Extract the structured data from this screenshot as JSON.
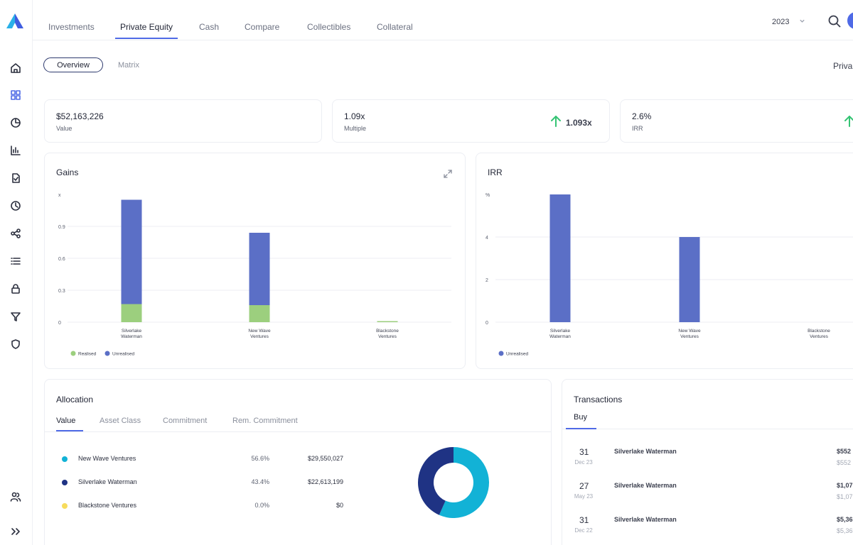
{
  "nav": {
    "tabs": [
      {
        "label": "Investments"
      },
      {
        "label": "Private Equity"
      },
      {
        "label": "Cash"
      },
      {
        "label": "Compare"
      },
      {
        "label": "Collectibles"
      },
      {
        "label": "Collateral"
      }
    ],
    "active_tab": "Private Equity",
    "year": "2023"
  },
  "subtabs": {
    "items": [
      "Overview",
      "Matrix"
    ],
    "active": "Overview",
    "right_label": "Priva"
  },
  "kpis": [
    {
      "value": "$52,163,226",
      "label": "Value",
      "change": ""
    },
    {
      "value": "1.09x",
      "label": "Multiple",
      "change": "1.093x"
    },
    {
      "value": "2.6%",
      "label": "IRR",
      "change": ""
    }
  ],
  "gains": {
    "title": "Gains"
  },
  "irr": {
    "title": "IRR"
  },
  "chart_data": [
    {
      "type": "bar",
      "title": "Gains",
      "stacked": true,
      "categories": [
        "Silverlake Waterman",
        "New Wave Ventures",
        "Blackstone Ventures"
      ],
      "category_lines": [
        [
          "Silverlake",
          "Waterman"
        ],
        [
          "New Wave",
          "Ventures"
        ],
        [
          "Blackstone",
          "Ventures"
        ]
      ],
      "series": [
        {
          "name": "Realised",
          "values": [
            0.17,
            0.16,
            0.01
          ],
          "color": "#9ccf7e"
        },
        {
          "name": "Unrealised",
          "values": [
            0.98,
            0.68,
            0.0
          ],
          "color": "#5b6fc6"
        }
      ],
      "ylabel": "x",
      "ylim": [
        0,
        1.2
      ],
      "yticks": [
        "0",
        "0.3",
        "0.6",
        "0.9"
      ],
      "grid": true,
      "legend": "bottom-left"
    },
    {
      "type": "bar",
      "title": "IRR",
      "categories": [
        "Silverlake Waterman",
        "New Wave Ventures",
        "Blackstone Ventures"
      ],
      "category_lines": [
        [
          "Silverlake",
          "Waterman"
        ],
        [
          "New Wave",
          "Ventures"
        ],
        [
          "Blackstone",
          "Ventures"
        ]
      ],
      "series": [
        {
          "name": "Unrealised",
          "values": [
            6.0,
            4.0,
            0.0
          ],
          "color": "#5b6fc6"
        }
      ],
      "ylabel": "%",
      "ylim": [
        0,
        6
      ],
      "yticks": [
        "0",
        "2",
        "4"
      ],
      "grid": true,
      "legend": "bottom-left"
    }
  ],
  "allocation": {
    "title": "Allocation",
    "tabs": [
      "Value",
      "Asset Class",
      "Commitment",
      "Rem. Commitment"
    ],
    "active_tab": "Value",
    "rows": [
      {
        "name": "New Wave Ventures",
        "pct": "56.6%",
        "amount": "$29,550,027",
        "color": "#12b2d6"
      },
      {
        "name": "Silverlake Waterman",
        "pct": "43.4%",
        "amount": "$22,613,199",
        "color": "#1f3384"
      },
      {
        "name": "Blackstone Ventures",
        "pct": "0.0%",
        "amount": "$0",
        "color": "#f7dc5c"
      }
    ],
    "donut_values": [
      56.6,
      43.4,
      0.0
    ]
  },
  "transactions": {
    "title": "Transactions",
    "tab": "Buy",
    "rows": [
      {
        "day": "31",
        "date": "Dec 23",
        "name": "Silverlake Waterman",
        "amount": "$552",
        "amount2": "$552"
      },
      {
        "day": "27",
        "date": "May 23",
        "name": "Silverlake Waterman",
        "amount": "$1,07",
        "amount2": "$1,07"
      },
      {
        "day": "31",
        "date": "Dec 22",
        "name": "Silverlake Waterman",
        "amount": "$5,36",
        "amount2": "$5,36"
      }
    ]
  }
}
